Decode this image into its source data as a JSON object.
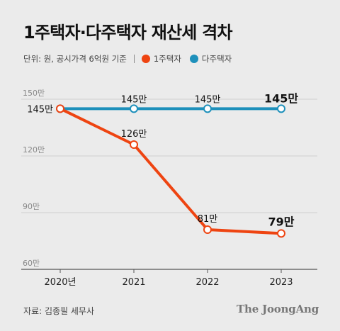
{
  "header": {
    "title": "1주택자·다주택자 재산세 격차",
    "unit_note": "단위: 원, 공시가격 6억원 기준"
  },
  "footer": {
    "source": "자료: 김종필 세무사",
    "brand": "The JoongAng"
  },
  "colors": {
    "single_home": "#ee4411",
    "multi_home": "#1e90bb",
    "background": "#ebebeb",
    "grid": "#cfcfcf"
  },
  "chart_data": {
    "type": "line",
    "title": "1주택자·다주택자 재산세 격차",
    "xlabel": "",
    "ylabel": "",
    "categories": [
      "2020년",
      "2021",
      "2022",
      "2023"
    ],
    "y_tick_labels": [
      "150만",
      "120만",
      "90만",
      "60만"
    ],
    "y_ticks": [
      150,
      120,
      90,
      60
    ],
    "ylim": [
      60,
      150
    ],
    "grid": true,
    "legend_position": "top-left",
    "series": [
      {
        "name": "1주택자",
        "values": [
          145,
          126,
          81,
          79
        ],
        "labels": [
          "145만",
          "126만",
          "81만",
          "79만"
        ],
        "color": "#ee4411"
      },
      {
        "name": "다주택자",
        "values": [
          145,
          145,
          145,
          145
        ],
        "labels": [
          "",
          "145만",
          "145만",
          "145만"
        ],
        "color": "#1e90bb"
      }
    ]
  }
}
